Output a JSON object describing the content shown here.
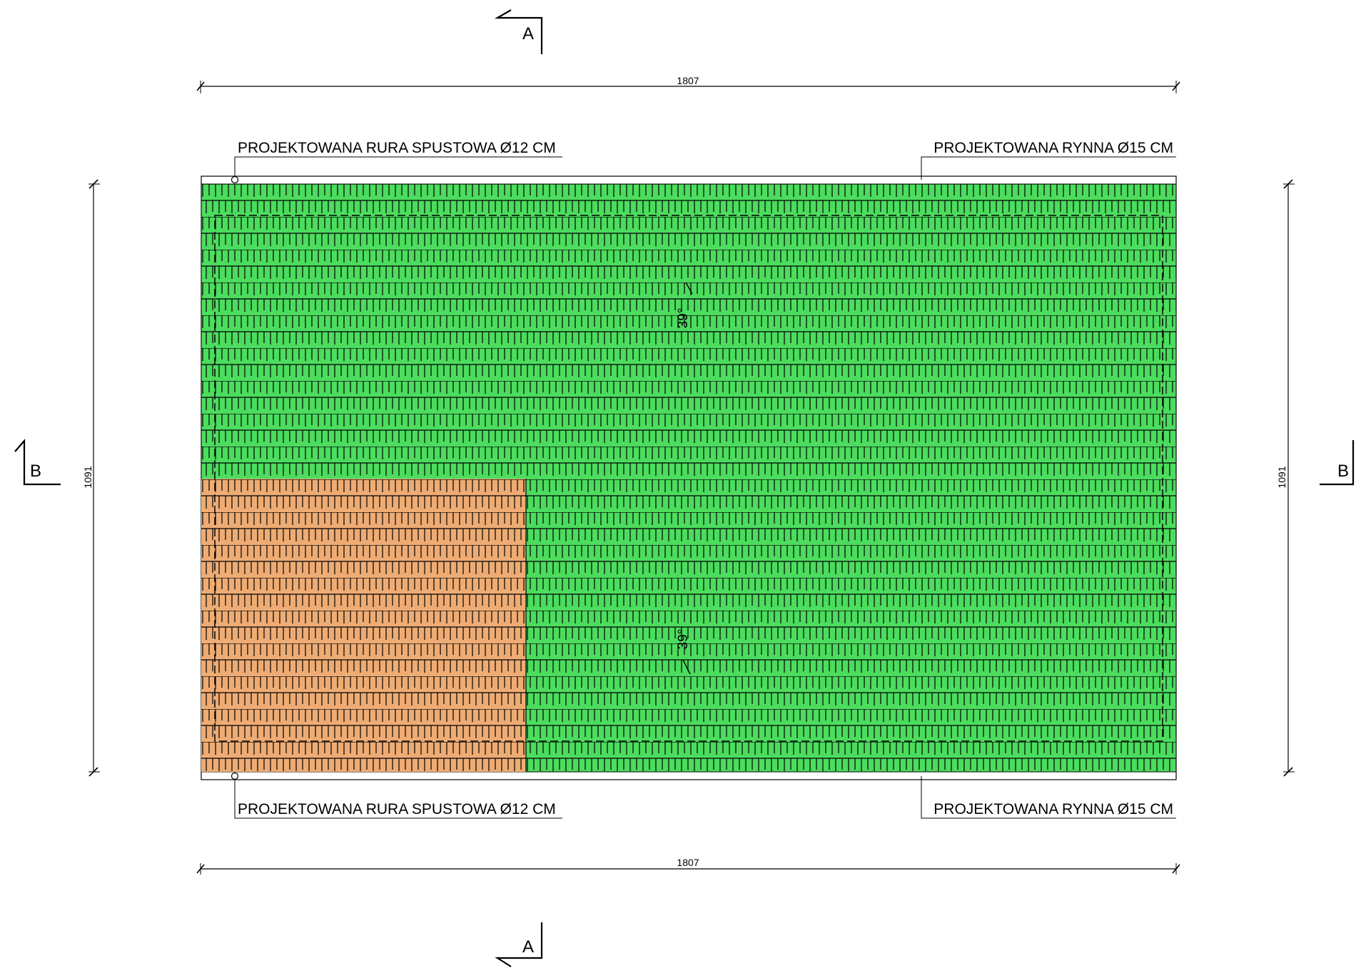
{
  "colors": {
    "roof_green": "#4cdc5e",
    "roof_orange": "#eeac74",
    "line": "#000000",
    "background": "#ffffff"
  },
  "section_markers": {
    "a_top": "A",
    "a_bottom": "A",
    "b_left": "B",
    "b_right": "B"
  },
  "dimensions": {
    "top_width": "1807",
    "bottom_width": "1807",
    "left_height": "1091",
    "right_height": "1091"
  },
  "labels": {
    "downpipe_top": "PROJEKTOWANA RURA SPUSTOWA Ø12 CM",
    "gutter_top": "PROJEKTOWANA RYNNA Ø15 CM",
    "downpipe_bottom": "PROJEKTOWANA RURA SPUSTOWA Ø12 CM",
    "gutter_bottom": "PROJEKTOWANA RYNNA Ø15 CM"
  },
  "slopes": {
    "upper": "39°",
    "lower": "39°"
  },
  "icons": {
    "downpipe": "downpipe-circle-icon",
    "section_cut": "section-cut-arrow-icon",
    "dimension_tick": "dimension-tick-icon",
    "tile_pattern": "roof-tile-pattern-icon"
  }
}
